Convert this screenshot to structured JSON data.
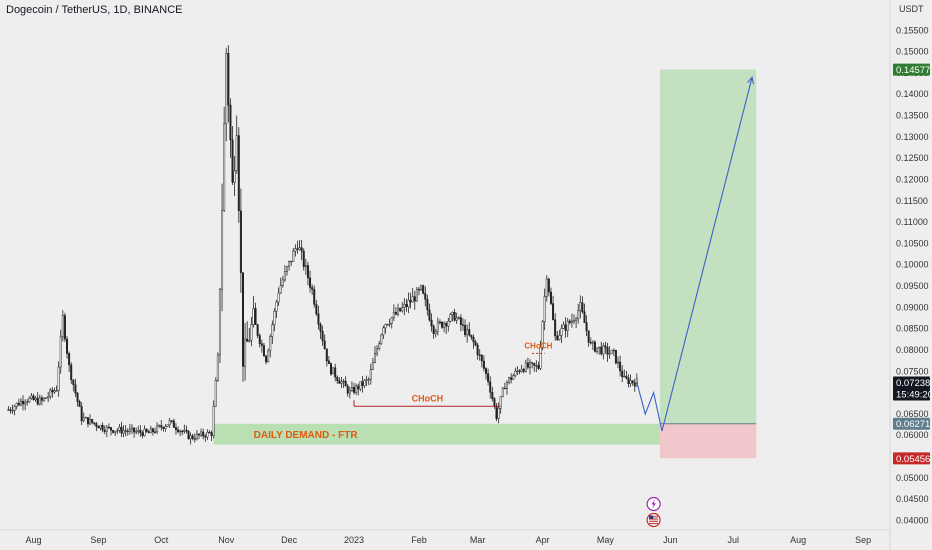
{
  "header": {
    "title": "Dogecoin / TetherUS, 1D, BINANCE"
  },
  "colors": {
    "background": "#eeeeee",
    "candle_up": "#ffffff",
    "candle_down": "#222222",
    "candle_outline": "#222222",
    "demand_zone": "#b9dfb3",
    "target_zone": "#c3e1c1",
    "stop_zone": "#f2c7cb",
    "projection_line": "#3b61c8",
    "choch_line": "#b22222",
    "annotation_text": "#e05a10",
    "target_tag": "#2e7d32",
    "stop_tag": "#c62828",
    "current_tag": "#131722",
    "entry_tag": "#607d8b"
  },
  "chart_data": {
    "type": "candlestick",
    "title": "Dogecoin / TetherUS, 1D, BINANCE",
    "currency": "USDT",
    "ylim": [
      0.0375,
      0.1595
    ],
    "x_tick_labels": [
      "Aug",
      "Sep",
      "Oct",
      "Nov",
      "Dec",
      "2023",
      "Feb",
      "Mar",
      "Apr",
      "May",
      "Jun",
      "Jul",
      "Aug",
      "Sep"
    ],
    "y_ticks": [
      0.04,
      0.045,
      0.05,
      0.055,
      0.06,
      0.065,
      0.07,
      0.075,
      0.08,
      0.085,
      0.09,
      0.095,
      0.1,
      0.105,
      0.11,
      0.115,
      0.12,
      0.125,
      0.13,
      0.135,
      0.14,
      0.145,
      0.15,
      0.155
    ],
    "y_tick_labels": [
      "0.04000",
      "0.04500",
      "0.05000",
      "0.05500",
      "0.06000",
      "0.06500",
      "0.07000",
      "0.07500",
      "0.08000",
      "0.08500",
      "0.09000",
      "0.09500",
      "0.10000",
      "0.10500",
      "0.11000",
      "0.11500",
      "0.12000",
      "0.12500",
      "0.13000",
      "0.13500",
      "0.14000",
      "0.14500",
      "0.15000",
      "0.15500"
    ],
    "price_path": [
      {
        "date": "2022-07-20",
        "close": 0.066
      },
      {
        "date": "2022-07-28",
        "close": 0.0685
      },
      {
        "date": "2022-08-05",
        "close": 0.068
      },
      {
        "date": "2022-08-12",
        "close": 0.071
      },
      {
        "date": "2022-08-15",
        "close": 0.0875
      },
      {
        "date": "2022-08-18",
        "close": 0.076
      },
      {
        "date": "2022-08-24",
        "close": 0.064
      },
      {
        "date": "2022-09-05",
        "close": 0.0615
      },
      {
        "date": "2022-09-15",
        "close": 0.061
      },
      {
        "date": "2022-09-25",
        "close": 0.0605
      },
      {
        "date": "2022-10-05",
        "close": 0.063
      },
      {
        "date": "2022-10-15",
        "close": 0.0595
      },
      {
        "date": "2022-10-25",
        "close": 0.0605
      },
      {
        "date": "2022-10-28",
        "close": 0.078
      },
      {
        "date": "2022-11-01",
        "close": 0.15
      },
      {
        "date": "2022-11-04",
        "close": 0.118
      },
      {
        "date": "2022-11-06",
        "close": 0.135
      },
      {
        "date": "2022-11-09",
        "close": 0.078
      },
      {
        "date": "2022-11-14",
        "close": 0.087
      },
      {
        "date": "2022-11-20",
        "close": 0.078
      },
      {
        "date": "2022-11-26",
        "close": 0.094
      },
      {
        "date": "2022-12-05",
        "close": 0.105
      },
      {
        "date": "2022-12-12",
        "close": 0.094
      },
      {
        "date": "2022-12-20",
        "close": 0.076
      },
      {
        "date": "2022-12-30",
        "close": 0.07
      },
      {
        "date": "2023-01-08",
        "close": 0.073
      },
      {
        "date": "2023-01-15",
        "close": 0.086
      },
      {
        "date": "2023-01-25",
        "close": 0.09
      },
      {
        "date": "2023-02-02",
        "close": 0.094
      },
      {
        "date": "2023-02-08",
        "close": 0.085
      },
      {
        "date": "2023-02-18",
        "close": 0.088
      },
      {
        "date": "2023-02-28",
        "close": 0.081
      },
      {
        "date": "2023-03-06",
        "close": 0.073
      },
      {
        "date": "2023-03-10",
        "close": 0.0645
      },
      {
        "date": "2023-03-14",
        "close": 0.072
      },
      {
        "date": "2023-03-22",
        "close": 0.076
      },
      {
        "date": "2023-03-30",
        "close": 0.076
      },
      {
        "date": "2023-04-03",
        "close": 0.098
      },
      {
        "date": "2023-04-07",
        "close": 0.083
      },
      {
        "date": "2023-04-15",
        "close": 0.087
      },
      {
        "date": "2023-04-19",
        "close": 0.09
      },
      {
        "date": "2023-04-24",
        "close": 0.081
      },
      {
        "date": "2023-05-05",
        "close": 0.079
      },
      {
        "date": "2023-05-10",
        "close": 0.073
      },
      {
        "date": "2023-05-16",
        "close": 0.0724
      }
    ],
    "projection": [
      {
        "date": "2023-05-16",
        "value": 0.0724
      },
      {
        "date": "2023-05-20",
        "value": 0.065
      },
      {
        "date": "2023-05-24",
        "value": 0.07
      },
      {
        "date": "2023-05-28",
        "value": 0.061
      },
      {
        "date": "2023-07-10",
        "value": 0.144
      }
    ],
    "zones": {
      "demand": {
        "label": "DAILY DEMAND - FTR",
        "from": "2022-10-26",
        "to": "2023-05-27",
        "low": 0.0578,
        "high": 0.0627
      },
      "target": {
        "from": "2023-05-27",
        "to": "2023-07-12",
        "low": 0.0627,
        "high": 0.1458
      },
      "stop": {
        "from": "2023-05-27",
        "to": "2023-07-12",
        "low": 0.0546,
        "high": 0.0627
      }
    },
    "annotations": [
      {
        "label": "CHoCH",
        "from": "2023-01-01",
        "to": "2023-03-12",
        "price": 0.0668
      },
      {
        "label": "CHoCH",
        "from": "2023-03-27",
        "to": "2023-04-02",
        "price": 0.0792,
        "dotted": true
      }
    ],
    "price_tags": {
      "target": "0.14577",
      "current": "0.07238",
      "countdown": "15:49:20",
      "entry": "0.06271",
      "stop": "0.05456"
    },
    "price_tag_values": {
      "target": 0.14577,
      "current": 0.07238,
      "entry": 0.06271,
      "stop": 0.05456
    },
    "events": [
      {
        "date": "2023-05-24",
        "icon": "lightning-icon"
      },
      {
        "date": "2023-05-24",
        "icon": "us-flag-icon"
      }
    ]
  }
}
